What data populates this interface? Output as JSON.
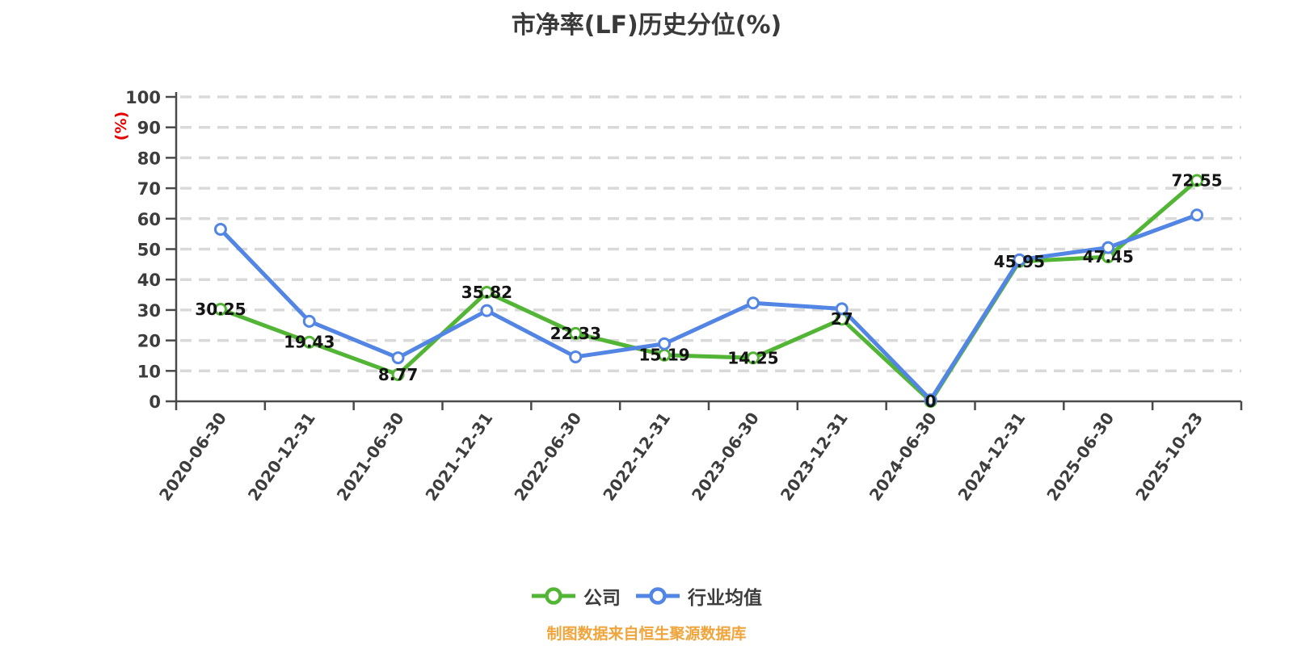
{
  "chart": {
    "title": "市净率(LF)历史分位(%)"
  },
  "footer": {
    "source_note": "制图数据来自恒生聚源数据库"
  },
  "chart_data": {
    "type": "line",
    "title": "市净率(LF)历史分位(%)",
    "xlabel": "",
    "ylabel": "(%)",
    "ylim": [
      0,
      100
    ],
    "ytick_step": 10,
    "grid": {
      "horizontal": true,
      "vertical": false,
      "style": "dashed",
      "color": "#d9d9d9"
    },
    "legend_position": "bottom",
    "axis_color": "#4a4a4a",
    "label_color": "#3d3d3d",
    "ylabel_color": "#e60000",
    "data_label_color": "#141414",
    "source_color": "#f0a43c",
    "categories": [
      "2020-06-30",
      "2020-12-31",
      "2021-06-30",
      "2021-12-31",
      "2022-06-30",
      "2022-12-31",
      "2023-06-30",
      "2023-12-31",
      "2024-06-30",
      "2024-12-31",
      "2025-06-30",
      "2025-10-23"
    ],
    "series": [
      {
        "key": "company",
        "name": "公司",
        "color": "#53b536",
        "data_labels": true,
        "values": [
          30.25,
          19.43,
          8.77,
          35.82,
          22.33,
          15.19,
          14.25,
          27,
          0,
          45.95,
          47.45,
          72.55
        ]
      },
      {
        "key": "industry-average",
        "name": "行业均值",
        "color": "#5285e4",
        "data_labels": false,
        "values_estimated": true,
        "values": [
          56.5,
          26.3,
          14.3,
          29.8,
          14.6,
          18.9,
          32.3,
          30.4,
          0.5,
          46.5,
          50.5,
          61.2
        ]
      }
    ]
  }
}
